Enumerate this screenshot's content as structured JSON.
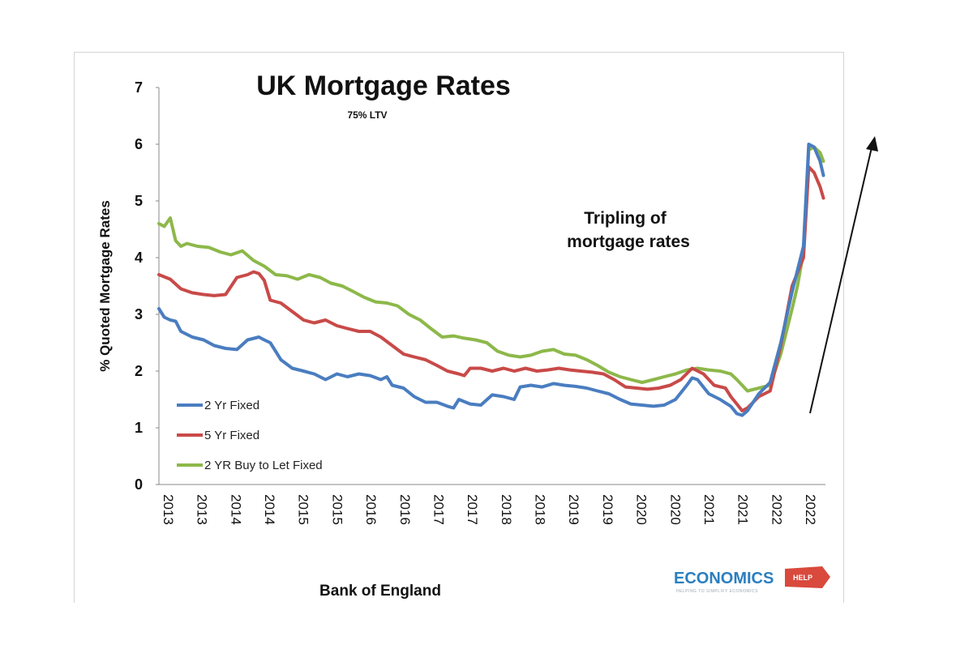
{
  "chart_data": {
    "type": "line",
    "title": "UK Mortgage Rates",
    "subtitle": "75% LTV",
    "ylabel": "% Quoted Mortgage Rates",
    "xlabel": "Bank of England",
    "annotation": "Tripling of\nmortgage rates",
    "ylim": [
      0,
      7
    ],
    "yticks": [
      "0",
      "1",
      "2",
      "3",
      "4",
      "5",
      "6",
      "7"
    ],
    "x_tick_labels": [
      "2013",
      "2013",
      "2014",
      "2014",
      "2015",
      "2015",
      "2016",
      "2016",
      "2017",
      "2017",
      "2018",
      "2018",
      "2019",
      "2019",
      "2020",
      "2020",
      "2021",
      "2021",
      "2022",
      "2022"
    ],
    "xlim": [
      2013.0,
      2023.0
    ],
    "series": [
      {
        "name": "2 Yr Fixed",
        "color": "#4a7dc0",
        "points": [
          [
            2013.0,
            3.1
          ],
          [
            2013.08,
            2.95
          ],
          [
            2013.17,
            2.9
          ],
          [
            2013.25,
            2.88
          ],
          [
            2013.33,
            2.7
          ],
          [
            2013.5,
            2.6
          ],
          [
            2013.67,
            2.55
          ],
          [
            2013.83,
            2.45
          ],
          [
            2014.0,
            2.4
          ],
          [
            2014.17,
            2.38
          ],
          [
            2014.33,
            2.55
          ],
          [
            2014.5,
            2.6
          ],
          [
            2014.58,
            2.55
          ],
          [
            2014.67,
            2.5
          ],
          [
            2014.75,
            2.35
          ],
          [
            2014.83,
            2.2
          ],
          [
            2015.0,
            2.05
          ],
          [
            2015.17,
            2.0
          ],
          [
            2015.33,
            1.95
          ],
          [
            2015.5,
            1.85
          ],
          [
            2015.67,
            1.95
          ],
          [
            2015.83,
            1.9
          ],
          [
            2016.0,
            1.95
          ],
          [
            2016.17,
            1.92
          ],
          [
            2016.33,
            1.85
          ],
          [
            2016.42,
            1.9
          ],
          [
            2016.5,
            1.75
          ],
          [
            2016.67,
            1.7
          ],
          [
            2016.83,
            1.55
          ],
          [
            2017.0,
            1.45
          ],
          [
            2017.17,
            1.45
          ],
          [
            2017.33,
            1.38
          ],
          [
            2017.42,
            1.35
          ],
          [
            2017.5,
            1.5
          ],
          [
            2017.67,
            1.42
          ],
          [
            2017.83,
            1.4
          ],
          [
            2018.0,
            1.58
          ],
          [
            2018.17,
            1.55
          ],
          [
            2018.33,
            1.5
          ],
          [
            2018.42,
            1.72
          ],
          [
            2018.58,
            1.75
          ],
          [
            2018.75,
            1.72
          ],
          [
            2018.92,
            1.78
          ],
          [
            2019.08,
            1.75
          ],
          [
            2019.25,
            1.73
          ],
          [
            2019.42,
            1.7
          ],
          [
            2019.58,
            1.65
          ],
          [
            2019.75,
            1.6
          ],
          [
            2019.92,
            1.5
          ],
          [
            2020.08,
            1.42
          ],
          [
            2020.25,
            1.4
          ],
          [
            2020.42,
            1.38
          ],
          [
            2020.58,
            1.4
          ],
          [
            2020.75,
            1.5
          ],
          [
            2020.92,
            1.75
          ],
          [
            2021.0,
            1.88
          ],
          [
            2021.08,
            1.85
          ],
          [
            2021.25,
            1.6
          ],
          [
            2021.42,
            1.5
          ],
          [
            2021.58,
            1.38
          ],
          [
            2021.67,
            1.25
          ],
          [
            2021.75,
            1.22
          ],
          [
            2021.83,
            1.3
          ],
          [
            2022.0,
            1.6
          ],
          [
            2022.17,
            1.8
          ],
          [
            2022.33,
            2.5
          ],
          [
            2022.5,
            3.4
          ],
          [
            2022.67,
            4.2
          ],
          [
            2022.75,
            6.0
          ],
          [
            2022.83,
            5.95
          ],
          [
            2022.92,
            5.7
          ],
          [
            2022.97,
            5.45
          ]
        ]
      },
      {
        "name": "5 Yr Fixed",
        "color": "#c84a48",
        "points": [
          [
            2013.0,
            3.7
          ],
          [
            2013.17,
            3.62
          ],
          [
            2013.33,
            3.45
          ],
          [
            2013.5,
            3.38
          ],
          [
            2013.67,
            3.35
          ],
          [
            2013.83,
            3.33
          ],
          [
            2014.0,
            3.35
          ],
          [
            2014.17,
            3.65
          ],
          [
            2014.33,
            3.7
          ],
          [
            2014.42,
            3.75
          ],
          [
            2014.5,
            3.72
          ],
          [
            2014.58,
            3.6
          ],
          [
            2014.67,
            3.25
          ],
          [
            2014.83,
            3.2
          ],
          [
            2015.0,
            3.05
          ],
          [
            2015.17,
            2.9
          ],
          [
            2015.33,
            2.85
          ],
          [
            2015.5,
            2.9
          ],
          [
            2015.67,
            2.8
          ],
          [
            2015.83,
            2.75
          ],
          [
            2016.0,
            2.7
          ],
          [
            2016.17,
            2.7
          ],
          [
            2016.33,
            2.6
          ],
          [
            2016.5,
            2.45
          ],
          [
            2016.67,
            2.3
          ],
          [
            2016.83,
            2.25
          ],
          [
            2017.0,
            2.2
          ],
          [
            2017.17,
            2.1
          ],
          [
            2017.33,
            2.0
          ],
          [
            2017.5,
            1.95
          ],
          [
            2017.58,
            1.92
          ],
          [
            2017.67,
            2.05
          ],
          [
            2017.83,
            2.05
          ],
          [
            2018.0,
            2.0
          ],
          [
            2018.17,
            2.05
          ],
          [
            2018.33,
            2.0
          ],
          [
            2018.5,
            2.05
          ],
          [
            2018.67,
            2.0
          ],
          [
            2018.83,
            2.02
          ],
          [
            2019.0,
            2.05
          ],
          [
            2019.17,
            2.02
          ],
          [
            2019.33,
            2.0
          ],
          [
            2019.5,
            1.98
          ],
          [
            2019.67,
            1.95
          ],
          [
            2019.83,
            1.85
          ],
          [
            2020.0,
            1.72
          ],
          [
            2020.17,
            1.7
          ],
          [
            2020.33,
            1.68
          ],
          [
            2020.5,
            1.7
          ],
          [
            2020.67,
            1.75
          ],
          [
            2020.83,
            1.85
          ],
          [
            2021.0,
            2.05
          ],
          [
            2021.17,
            1.95
          ],
          [
            2021.33,
            1.75
          ],
          [
            2021.5,
            1.7
          ],
          [
            2021.58,
            1.55
          ],
          [
            2021.67,
            1.42
          ],
          [
            2021.75,
            1.3
          ],
          [
            2021.83,
            1.35
          ],
          [
            2022.0,
            1.55
          ],
          [
            2022.17,
            1.65
          ],
          [
            2022.33,
            2.45
          ],
          [
            2022.5,
            3.5
          ],
          [
            2022.67,
            4.0
          ],
          [
            2022.75,
            5.6
          ],
          [
            2022.83,
            5.5
          ],
          [
            2022.92,
            5.25
          ],
          [
            2022.97,
            5.05
          ]
        ]
      },
      {
        "name": "2 YR Buy to Let Fixed",
        "color": "#8db84a",
        "points": [
          [
            2013.0,
            4.6
          ],
          [
            2013.08,
            4.55
          ],
          [
            2013.17,
            4.7
          ],
          [
            2013.25,
            4.3
          ],
          [
            2013.33,
            4.2
          ],
          [
            2013.42,
            4.25
          ],
          [
            2013.58,
            4.2
          ],
          [
            2013.75,
            4.18
          ],
          [
            2013.92,
            4.1
          ],
          [
            2014.08,
            4.05
          ],
          [
            2014.25,
            4.12
          ],
          [
            2014.42,
            3.95
          ],
          [
            2014.58,
            3.85
          ],
          [
            2014.75,
            3.7
          ],
          [
            2014.92,
            3.68
          ],
          [
            2015.08,
            3.62
          ],
          [
            2015.25,
            3.7
          ],
          [
            2015.42,
            3.65
          ],
          [
            2015.58,
            3.55
          ],
          [
            2015.75,
            3.5
          ],
          [
            2015.92,
            3.4
          ],
          [
            2016.08,
            3.3
          ],
          [
            2016.25,
            3.22
          ],
          [
            2016.42,
            3.2
          ],
          [
            2016.58,
            3.15
          ],
          [
            2016.75,
            3.0
          ],
          [
            2016.92,
            2.9
          ],
          [
            2017.08,
            2.75
          ],
          [
            2017.25,
            2.6
          ],
          [
            2017.42,
            2.62
          ],
          [
            2017.58,
            2.58
          ],
          [
            2017.75,
            2.55
          ],
          [
            2017.92,
            2.5
          ],
          [
            2018.08,
            2.35
          ],
          [
            2018.25,
            2.28
          ],
          [
            2018.42,
            2.25
          ],
          [
            2018.58,
            2.28
          ],
          [
            2018.75,
            2.35
          ],
          [
            2018.92,
            2.38
          ],
          [
            2019.08,
            2.3
          ],
          [
            2019.25,
            2.28
          ],
          [
            2019.42,
            2.2
          ],
          [
            2019.58,
            2.1
          ],
          [
            2019.75,
            1.98
          ],
          [
            2019.92,
            1.9
          ],
          [
            2020.08,
            1.85
          ],
          [
            2020.25,
            1.8
          ],
          [
            2020.42,
            1.85
          ],
          [
            2020.58,
            1.9
          ],
          [
            2020.75,
            1.95
          ],
          [
            2020.92,
            2.02
          ],
          [
            2021.08,
            2.05
          ],
          [
            2021.25,
            2.02
          ],
          [
            2021.42,
            2.0
          ],
          [
            2021.58,
            1.95
          ],
          [
            2021.67,
            1.85
          ],
          [
            2021.75,
            1.75
          ],
          [
            2021.83,
            1.65
          ],
          [
            2022.0,
            1.7
          ],
          [
            2022.17,
            1.75
          ],
          [
            2022.33,
            2.3
          ],
          [
            2022.5,
            3.1
          ],
          [
            2022.58,
            3.5
          ],
          [
            2022.67,
            4.1
          ],
          [
            2022.75,
            5.9
          ],
          [
            2022.83,
            5.95
          ],
          [
            2022.92,
            5.85
          ],
          [
            2022.97,
            5.7
          ]
        ]
      }
    ]
  },
  "logo": {
    "brand": "ECONOMICS",
    "badge": "HELP",
    "tagline": "HELPING TO SIMPLIFY ECONOMICS"
  }
}
